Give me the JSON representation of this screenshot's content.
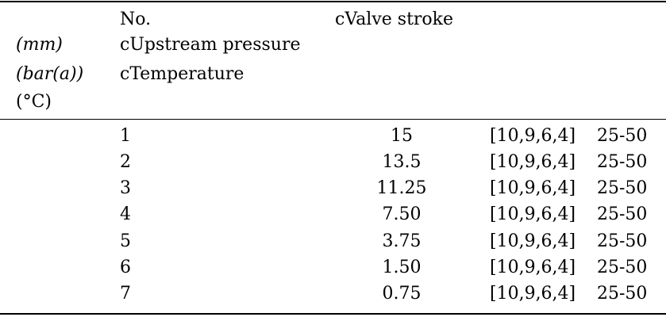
{
  "header": {
    "unit_mm": "(mm)",
    "unit_bar": "(bar(a))",
    "unit_temp": "(°C)",
    "col_no": "No.",
    "col_upstream": "cUpstream pressure",
    "col_temperature": "cTemperature",
    "col_valve_stroke": "cValve stroke"
  },
  "rows": [
    {
      "no": "1",
      "stroke": "15",
      "pressure": "[10,9,6,4]",
      "temp": "25-50"
    },
    {
      "no": "2",
      "stroke": "13.5",
      "pressure": "[10,9,6,4]",
      "temp": "25-50"
    },
    {
      "no": "3",
      "stroke": "11.25",
      "pressure": "[10,9,6,4]",
      "temp": "25-50"
    },
    {
      "no": "4",
      "stroke": "7.50",
      "pressure": "[10,9,6,4]",
      "temp": "25-50"
    },
    {
      "no": "5",
      "stroke": "3.75",
      "pressure": "[10,9,6,4]",
      "temp": "25-50"
    },
    {
      "no": "6",
      "stroke": "1.50",
      "pressure": "[10,9,6,4]",
      "temp": "25-50"
    },
    {
      "no": "7",
      "stroke": "0.75",
      "pressure": "[10,9,6,4]",
      "temp": "25-50"
    }
  ]
}
